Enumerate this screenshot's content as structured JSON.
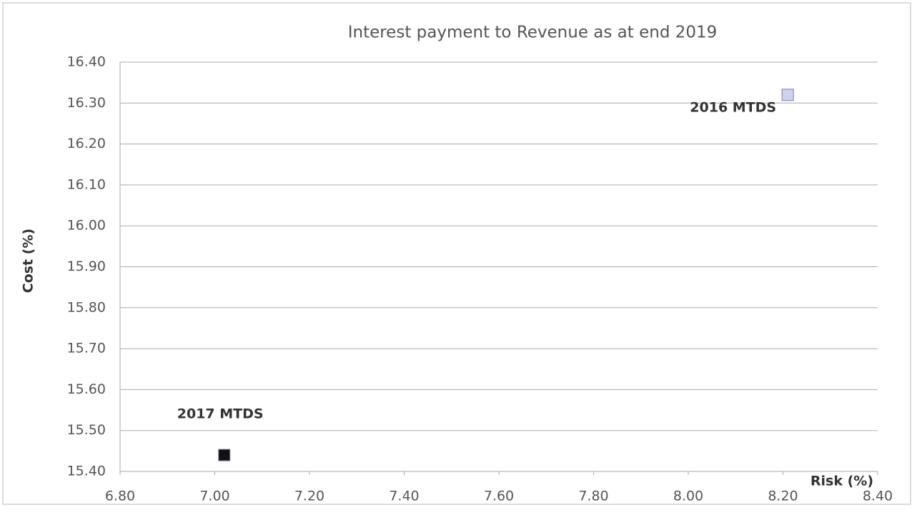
{
  "chart_data": {
    "type": "scatter",
    "title": "Interest payment to Revenue as at end 2019",
    "x_label": "Risk (%)",
    "y_label": "Cost (%)",
    "series": [
      {
        "name": "2016 MTDS",
        "color": "#ccd2f2",
        "x": [
          8.21
        ],
        "values": [
          16.32
        ]
      },
      {
        "name": "2017 MTDS",
        "color": "#111111",
        "x": [
          7.02
        ],
        "values": [
          15.44
        ]
      }
    ],
    "xlim": [
      6.8,
      8.4
    ],
    "xticks": [
      {
        "value": 6.8,
        "label": "6.80"
      },
      {
        "value": 7.0,
        "label": "7.00"
      },
      {
        "value": 7.2,
        "label": "7.20"
      },
      {
        "value": 7.4,
        "label": "7.40"
      },
      {
        "value": 7.6,
        "label": "7.60"
      },
      {
        "value": 7.8,
        "label": "7.80"
      },
      {
        "value": 8.0,
        "label": "8.00"
      },
      {
        "value": 8.2,
        "label": "8.20"
      },
      {
        "value": 8.4,
        "label": "8.40"
      }
    ],
    "ylim": [
      15.4,
      16.4
    ],
    "yticks": [
      {
        "value": 15.4,
        "label": "15.40"
      },
      {
        "value": 15.5,
        "label": "15.50"
      },
      {
        "value": 15.6,
        "label": "15.60"
      },
      {
        "value": 15.7,
        "label": "15.70"
      },
      {
        "value": 15.8,
        "label": "15.80"
      },
      {
        "value": 15.9,
        "label": "15.90"
      },
      {
        "value": 16.0,
        "label": "16.00"
      },
      {
        "value": 16.1,
        "label": "16.10"
      },
      {
        "value": 16.2,
        "label": "16.20"
      },
      {
        "value": 16.3,
        "label": "16.30"
      },
      {
        "value": 16.4,
        "label": "16.40"
      }
    ],
    "grid": true
  }
}
